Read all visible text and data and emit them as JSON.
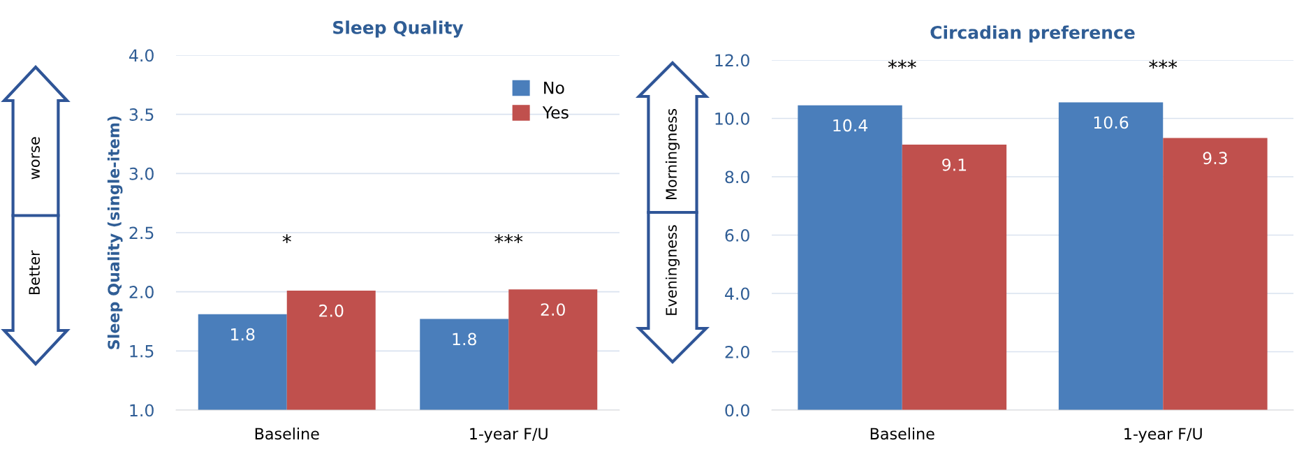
{
  "chart_data": [
    {
      "type": "bar",
      "title": "Sleep Quality",
      "ylabel": "Sleep Quality (single-item)",
      "categories": [
        "Baseline",
        "1-year F/U"
      ],
      "series": [
        {
          "name": "No",
          "color": "#4a7ebb",
          "values": [
            1.81,
            1.77
          ],
          "value_labels": [
            "1.8",
            "1.8"
          ]
        },
        {
          "name": "Yes",
          "color": "#c0504d",
          "values": [
            2.01,
            2.02
          ],
          "value_labels": [
            "2.0",
            "2.0"
          ]
        }
      ],
      "ylim": [
        1.0,
        4.0
      ],
      "yticks": [
        {
          "value": 1.0,
          "label": "1.0"
        },
        {
          "value": 1.5,
          "label": "1.5"
        },
        {
          "value": 2.0,
          "label": "2.0"
        },
        {
          "value": 2.5,
          "label": "2.5"
        },
        {
          "value": 3.0,
          "label": "3.0"
        },
        {
          "value": 3.5,
          "label": "3.5"
        },
        {
          "value": 4.0,
          "label": "4.0"
        }
      ],
      "grid": "y",
      "legend": "top right",
      "annotations": [
        "*",
        "***",
        "worse",
        "Better"
      ]
    },
    {
      "type": "bar",
      "title": "Circadian preference",
      "categories": [
        "Baseline",
        "1-year F/U"
      ],
      "series": [
        {
          "color": "#4a7ebb",
          "values": [
            10.45,
            10.55
          ],
          "value_labels": [
            "10.4",
            "10.6"
          ]
        },
        {
          "color": "#c0504d",
          "values": [
            9.1,
            9.33
          ],
          "value_labels": [
            "9.1",
            "9.3"
          ]
        }
      ],
      "ylim": [
        0.0,
        12.0
      ],
      "yticks": [
        {
          "value": 0,
          "label": "0.0"
        },
        {
          "value": 2,
          "label": "2.0"
        },
        {
          "value": 4,
          "label": "4.0"
        },
        {
          "value": 6,
          "label": "6.0"
        },
        {
          "value": 8,
          "label": "8.0"
        },
        {
          "value": 10,
          "label": "10.0"
        },
        {
          "value": 12,
          "label": "12.0"
        }
      ],
      "grid": "y",
      "annotations": [
        "***",
        "***",
        "Morningness",
        "Eveningness"
      ]
    }
  ]
}
